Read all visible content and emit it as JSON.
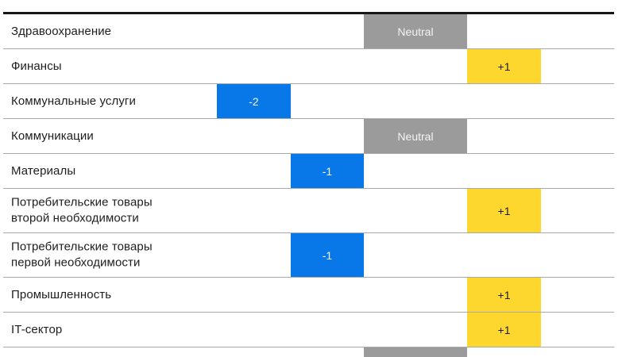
{
  "colors": {
    "blue": "#0878e8",
    "yellow": "#fdd72e",
    "gray": "#9b9b9b",
    "divider": "#a9a9a9",
    "rule": "#161616",
    "label_text": "#1e1e1e"
  },
  "rows": [
    {
      "label": "Здравоохранение",
      "rating_label": "Neutral",
      "slot": "neutral",
      "partial": false
    },
    {
      "label": "Финансы",
      "rating_label": "+1",
      "slot": "p1",
      "partial": false
    },
    {
      "label": "Коммунальные услуги",
      "rating_label": "-2",
      "slot": "m2",
      "partial": false
    },
    {
      "label": "Коммуникации",
      "rating_label": "Neutral",
      "slot": "neutral",
      "partial": false
    },
    {
      "label": "Материалы",
      "rating_label": "-1",
      "slot": "m1",
      "partial": false
    },
    {
      "label": "Потребительские товары\nвторой необходимости",
      "rating_label": "+1",
      "slot": "p1",
      "partial": false
    },
    {
      "label": "Потребительские товары\nпервой необходимости",
      "rating_label": "-1",
      "slot": "m1",
      "partial": false
    },
    {
      "label": "Промышленность",
      "rating_label": "+1",
      "slot": "p1",
      "partial": false
    },
    {
      "label": "IT-сектор",
      "rating_label": "+1",
      "slot": "p1",
      "partial": false
    },
    {
      "label": "",
      "rating_label": "",
      "slot": "neutral",
      "partial": true
    }
  ],
  "chart_data": {
    "type": "table",
    "title": "",
    "categories": [
      "Здравоохранение",
      "Финансы",
      "Коммунальные услуги",
      "Коммуникации",
      "Материалы",
      "Потребительские товары второй необходимости",
      "Потребительские товары первой необходимости",
      "Промышленность",
      "IT-сектор"
    ],
    "ratings": [
      "Neutral",
      "+1",
      "-2",
      "Neutral",
      "-1",
      "+1",
      "-1",
      "+1",
      "+1"
    ],
    "values": [
      0,
      1,
      -2,
      0,
      -1,
      1,
      -1,
      1,
      1
    ],
    "scale": {
      "min": -2,
      "max": 1,
      "neutral": 0
    },
    "legend_position": "none",
    "grid": "horizontal-dividers",
    "note": "A tenth row is cut off at the bottom edge, showing only the top sliver of a gray Neutral cell."
  }
}
